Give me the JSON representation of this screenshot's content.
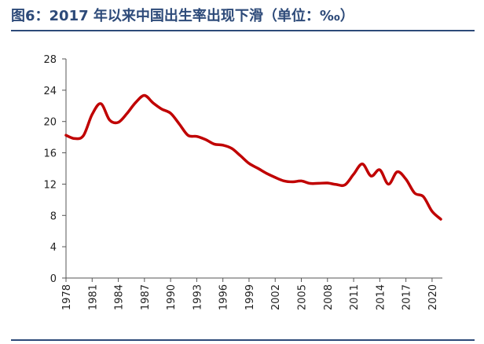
{
  "title": "图6：2017 年以来中国出生率出现下滑（单位：‰）",
  "chart_data": {
    "type": "line",
    "title": "图6：2017 年以来中国出生率出现下滑（单位：‰）",
    "xlabel": "",
    "ylabel": "",
    "ylim": [
      0,
      28
    ],
    "yticks": [
      0,
      4,
      8,
      12,
      16,
      20,
      24,
      28
    ],
    "xlim": [
      1978,
      2021
    ],
    "xticks": [
      "1978",
      "1981",
      "1984",
      "1987",
      "1990",
      "1993",
      "1996",
      "1999",
      "2002",
      "2005",
      "2008",
      "2011",
      "2014",
      "2017",
      "2020"
    ],
    "grid": false,
    "legend": "none",
    "color": "#c00000",
    "series": [
      {
        "x": [
          1978,
          1979,
          1980,
          1981,
          1982,
          1983,
          1984,
          1985,
          1986,
          1987,
          1988,
          1989,
          1990,
          1991,
          1992,
          1993,
          1994,
          1995,
          1996,
          1997,
          1998,
          1999,
          2000,
          2001,
          2002,
          2003,
          2004,
          2005,
          2006,
          2007,
          2008,
          2009,
          2010,
          2011,
          2012,
          2013,
          2014,
          2015,
          2016,
          2017,
          2018,
          2019,
          2020,
          2021
        ],
        "values": [
          18.25,
          17.82,
          18.21,
          20.91,
          22.28,
          20.19,
          19.9,
          21.04,
          22.43,
          23.33,
          22.37,
          21.58,
          21.06,
          19.68,
          18.24,
          18.09,
          17.7,
          17.12,
          16.98,
          16.57,
          15.64,
          14.64,
          14.03,
          13.38,
          12.86,
          12.41,
          12.29,
          12.4,
          12.09,
          12.1,
          12.14,
          11.95,
          11.9,
          13.27,
          14.57,
          13.03,
          13.83,
          11.99,
          13.57,
          12.64,
          10.86,
          10.41,
          8.52,
          7.52
        ]
      }
    ]
  }
}
